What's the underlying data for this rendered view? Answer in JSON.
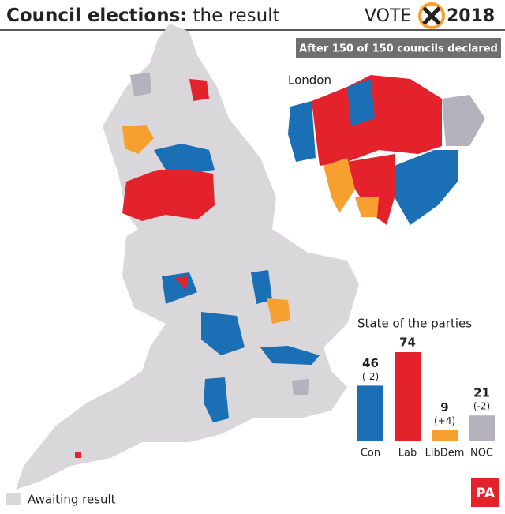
{
  "header": {
    "title_bold": "Council elections:",
    "title_rest": "the result",
    "logo_left": "VOTE",
    "logo_right": "2018"
  },
  "banner": "After 150 of 150 councils declared",
  "map": {
    "inset_label": "London",
    "legend_label": "Awaiting result"
  },
  "chart_data": {
    "type": "bar",
    "title": "State of the parties",
    "categories": [
      "Con",
      "Lab",
      "LibDem",
      "NOC"
    ],
    "values": [
      46,
      74,
      9,
      21
    ],
    "change_labels": [
      "(-2)",
      null,
      "(+4)",
      "(-2)"
    ],
    "colors": [
      "#1a6fb5",
      "#e3222b",
      "#f7a030",
      "#b5b1bd"
    ]
  },
  "footer": {
    "source": "PA"
  }
}
